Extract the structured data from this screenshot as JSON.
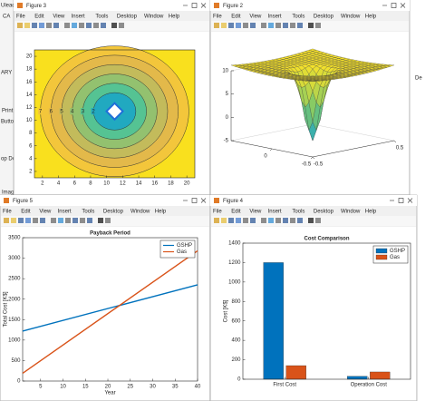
{
  "background": {
    "labels": [
      "Ulead",
      "CA",
      "ARY",
      "Print",
      "Button",
      "op Do",
      "Image",
      "De"
    ]
  },
  "windows": [
    {
      "title": "Figure 3",
      "menu": [
        "File",
        "Edit",
        "View",
        "Insert",
        "Tools",
        "Desktop",
        "Window",
        "Help"
      ],
      "chart": {
        "type": "contour",
        "xlim": [
          1,
          21
        ],
        "ylim": [
          1,
          21
        ],
        "xticks": [
          2,
          4,
          6,
          8,
          10,
          12,
          14,
          16,
          18,
          20
        ],
        "yticks": [
          2,
          4,
          6,
          8,
          10,
          12,
          14,
          16,
          18,
          20
        ],
        "levels": [
          7,
          6,
          5,
          4,
          3,
          2
        ]
      }
    },
    {
      "title": "Figure 2",
      "menu": [
        "File",
        "Edit",
        "View",
        "Insert",
        "Tools",
        "Desktop",
        "Window",
        "Help"
      ],
      "chart": {
        "type": "surface",
        "zlim": [
          -5,
          10
        ],
        "zticks": [
          -5,
          0,
          5,
          10
        ],
        "xticks": [
          -0.5,
          0.5
        ],
        "yticks": [
          -0.5,
          0
        ]
      }
    },
    {
      "title": "Figure 5",
      "menu": [
        "File",
        "Edit",
        "View",
        "Insert",
        "Tools",
        "Desktop",
        "Window",
        "Help"
      ],
      "chart": {
        "type": "line",
        "title": "Payback Period",
        "x_label": "Year",
        "y_label": "Total Cost [K$]",
        "x": [
          1,
          40
        ],
        "series": [
          {
            "name": "GSHP",
            "color": "#0072bd",
            "values": [
              1220,
              2350
            ]
          },
          {
            "name": "Gas",
            "color": "#d95319",
            "values": [
              190,
              3180
            ]
          }
        ],
        "xlim": [
          1,
          40
        ],
        "ylim": [
          0,
          3500
        ],
        "xticks": [
          5,
          10,
          15,
          20,
          25,
          30,
          35,
          40
        ],
        "yticks": [
          0,
          500,
          1000,
          1500,
          2000,
          2500,
          3000,
          3500
        ],
        "legend": "northeast"
      }
    },
    {
      "title": "Figure 4",
      "menu": [
        "File",
        "Edit",
        "View",
        "Insert",
        "Tools",
        "Desktop",
        "Window",
        "Help"
      ],
      "chart": {
        "type": "bar",
        "title": "Cost Comparison",
        "y_label": "Cost [K$]",
        "categories": [
          "First Cost",
          "Operation Cost"
        ],
        "series": [
          {
            "name": "GSHP",
            "color": "#0072bd",
            "values": [
              1200,
              30
            ]
          },
          {
            "name": "Gas",
            "color": "#d95319",
            "values": [
              140,
              75
            ]
          }
        ],
        "ylim": [
          0,
          1400
        ],
        "yticks": [
          0,
          200,
          400,
          600,
          800,
          1000,
          1200,
          1400
        ],
        "legend": "northeast"
      }
    }
  ]
}
